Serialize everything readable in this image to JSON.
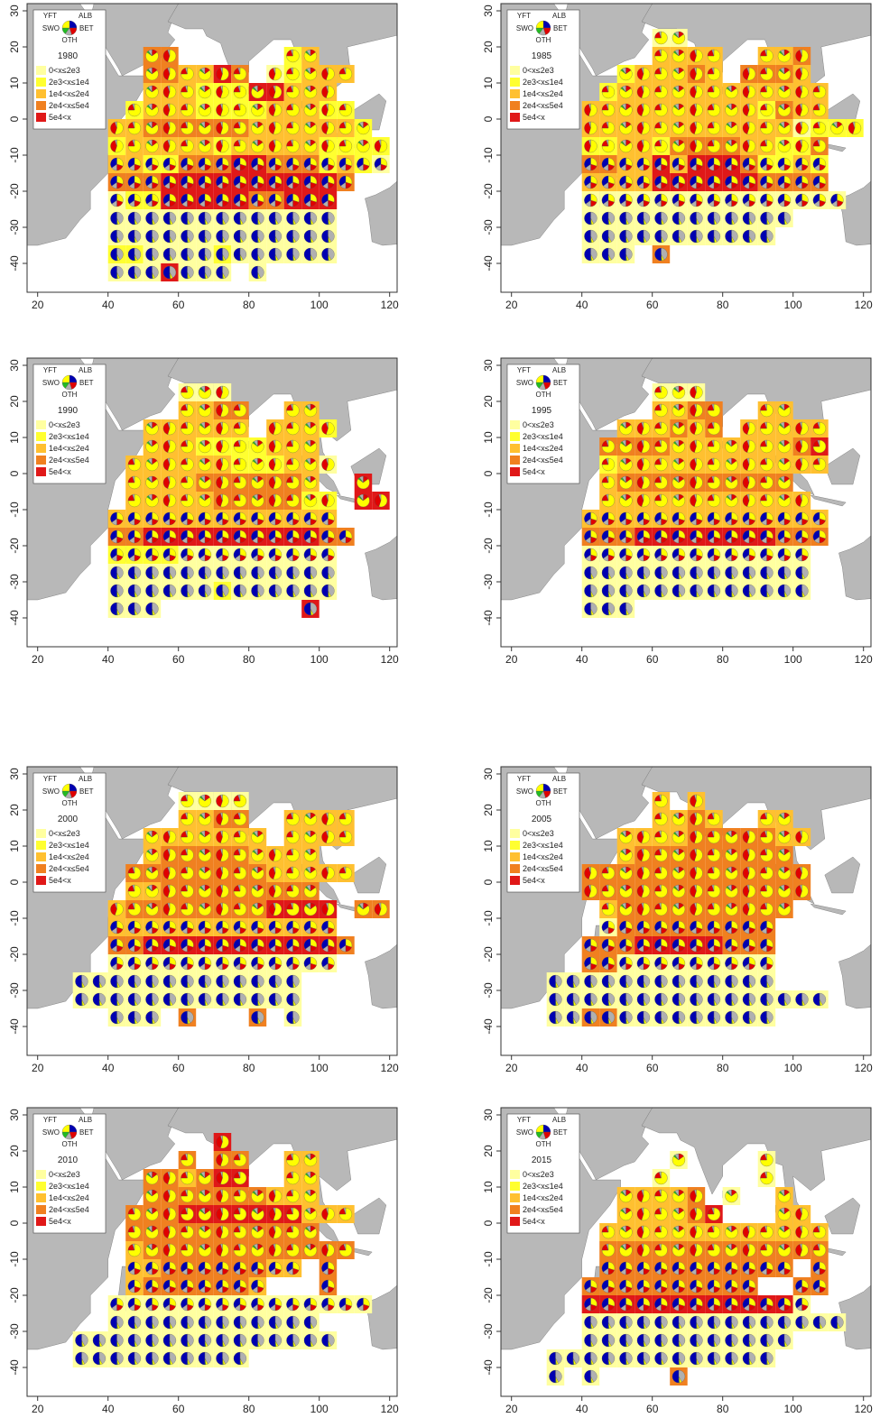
{
  "legend": {
    "species": [
      {
        "name": "YFT",
        "color": "#ffff00"
      },
      {
        "name": "ALB",
        "color": "#0000b0"
      },
      {
        "name": "BET",
        "color": "#e00000"
      },
      {
        "name": "SWO",
        "color": "#22bb22"
      },
      {
        "name": "OTH",
        "color": "#b0b0b0"
      }
    ],
    "classes": [
      {
        "label": "0<x≤2e3",
        "color": "#ffffa0"
      },
      {
        "label": "2e3<x≤1e4",
        "color": "#ffff30"
      },
      {
        "label": "1e4<x≤2e4",
        "color": "#ffc030"
      },
      {
        "label": "2e4<x≤5e4",
        "color": "#f08020"
      },
      {
        "label": "5e4<x",
        "color": "#e01818"
      }
    ]
  },
  "xticks": [
    20,
    40,
    60,
    80,
    100,
    120
  ],
  "yticks": [
    30,
    20,
    10,
    0,
    -10,
    -20,
    -30,
    -40
  ],
  "panels": [
    {
      "year": 1980,
      "cells": [
        "..................",
        "....44......23....",
        "....443354.12333..",
        "....33322255333...",
        "...2333222233322..",
        "..334444443333332.",
        "..2333332333332222",
        "..3322444554442321",
        "..44455555555554..",
        "..1225555544555...",
        "..1111111111111...",
        "..1111111111111...",
        "..2211112111111...",
        "..1115111.1......."
      ]
    },
    {
      "year": 1985,
      "cells": [
        "......11..........",
        "......3333..334...",
        "....233343.4443...",
        "...2333333333333..",
        "..33333333332433..",
        "..3333333333331222",
        "..22332444433224..",
        "..44335355542232..",
        "..33335555554444..",
        "..111111111111111.",
        "..111111111111....",
        "..11111111111.....",
        "..111.4...........",
        ".................."
      ]
    },
    {
      "year": 1990,
      "cells": [
        "......111.........",
        "......3344..33....",
        "....333333.3332...",
        "....3332222333....",
        "...333333222331...",
        "...33334444443..5.",
        "...333334444422.55",
        "..3333333333333...",
        "..44555555555544..",
        "..2222111111111...",
        "..1111111111111...",
        "..1111112111111...",
        "..111........5....",
        ".................."
      ]
    },
    {
      "year": 1995,
      "cells": [
        "......111.........",
        "......3344..33....",
        "....333434.33333..",
        "...4444333333345..",
        "...2333333333333..",
        "...34444444444....",
        "...333333333333...",
        "..33333333333333..",
        "..44455555555444..",
        "..1111111111111...",
        "..1111111111111...",
        "..1111111111111...",
        "..111.............",
        ".................."
      ]
    },
    {
      "year": 2000,
      "cells": [
        "......1111........",
        "......3344..3333..",
        "....3333333.3333..",
        "....3444443333....",
        "...4444444433333..",
        "...33444444444....",
        "..3444444445555.44",
        "..3333333333333...",
        "..44555555555554..",
        "..1111111111111...",
        "1111111111111.....",
        "1111111111111.....",
        "..111.4...4.1.....",
        ".................."
      ]
    },
    {
      "year": 2005,
      "cells": [
        "......3.3.........",
        "......3343..33....",
        "....33334444433...",
        "....3444444444....",
        "..4444444444444...",
        "..4444444444444...",
        "...34444444444....",
        "...1444444444.....",
        "..44455555444.....",
        "..44111111111.....",
        "1111111111111.....",
        "1111111111111111..",
        "1144111111111.....",
        ".................."
      ]
    },
    {
      "year": 2010,
      "cells": [
        "........5.........",
        "......4.44..33....",
        "....443455..33....",
        "....4444444333....",
        "...4445555555333..",
        "...44444444444....",
        "...3444444444444..",
        "...3344444433.4...",
        "...34444443...4...",
        "..111111111111111.",
        "..111111111111....",
        "111111111111111...",
        "1111111111........",
        ".................."
      ]
    },
    {
      "year": 2015,
      "cells": [
        "....................",
        ".......1....1.....",
        "......1.....1.....",
        "....33334.1..3....",
        "....333345...33...",
        "...3333333333333..",
        "...4444444444444..",
        "...44444444444.4..",
        "..4444444444..44..",
        "..5555555555551...",
        "..111111111111111.",
        "..111111111111....",
        "1111111111111.....",
        "1.1....4.........."
      ]
    }
  ]
}
